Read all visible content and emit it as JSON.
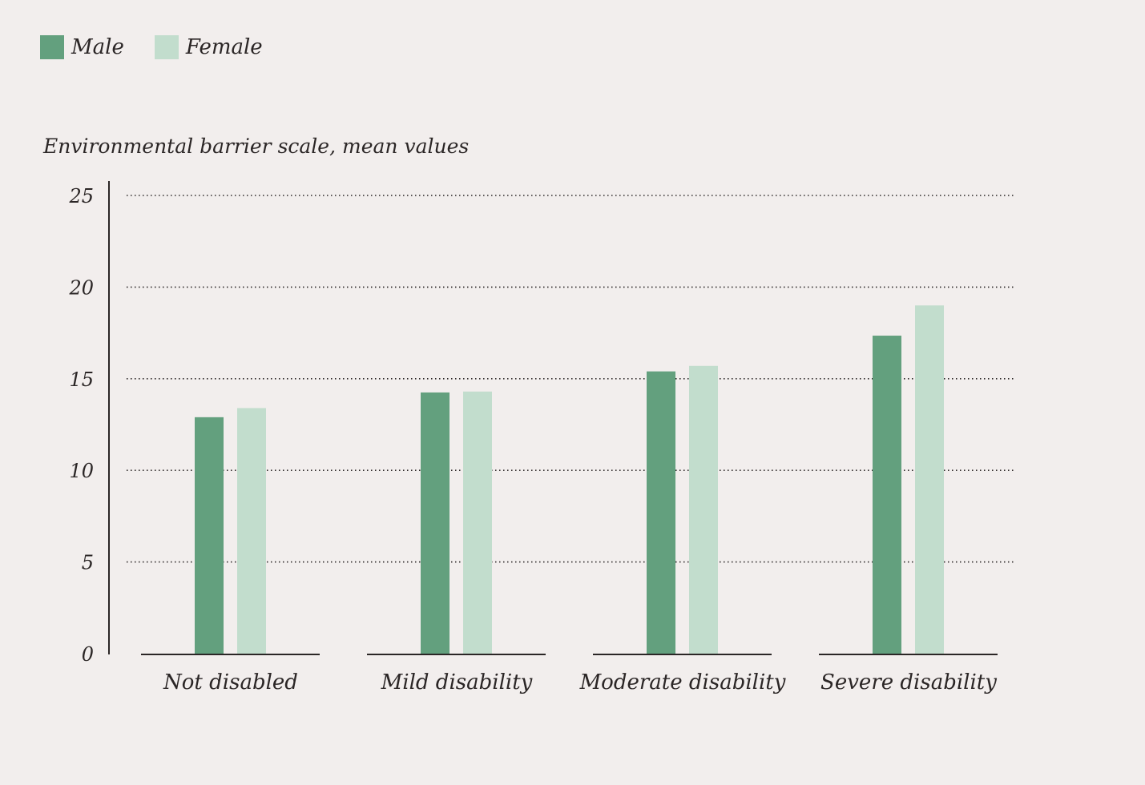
{
  "chart_data": {
    "type": "bar",
    "title": "",
    "ylabel": "Environmental barrier scale, mean values",
    "xlabel": "",
    "categories": [
      "Not disabled",
      "Mild disability",
      "Moderate disability",
      "Severe disability"
    ],
    "series": [
      {
        "name": "Male",
        "color": "#63a07e",
        "values": [
          12.9,
          14.25,
          15.4,
          17.35
        ]
      },
      {
        "name": "Female",
        "color": "#c2ddcd",
        "values": [
          13.4,
          14.3,
          15.7,
          19.0
        ]
      }
    ],
    "ylim": [
      0,
      25
    ],
    "yticks": [
      "0",
      "5",
      "10",
      "15",
      "20",
      "25"
    ],
    "grid": "dotted horizontal",
    "legend": "top-left"
  }
}
